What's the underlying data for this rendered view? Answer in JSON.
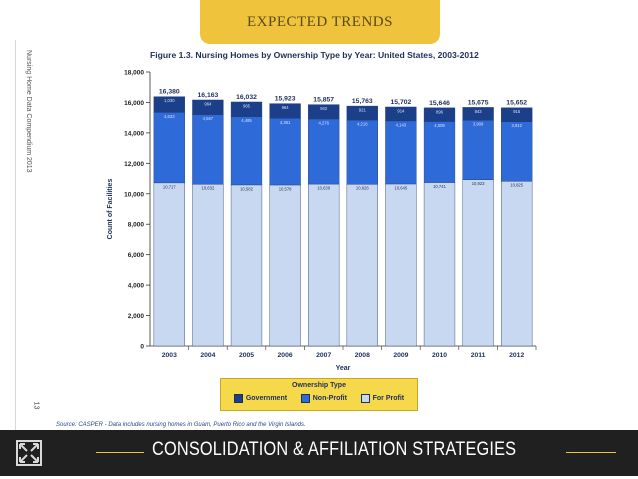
{
  "slide": {
    "banner_title": "EXPECTED TRENDS",
    "side_label": "Nursing Home Data Compendium 2013",
    "page_number": "13",
    "source_note": "Source: CASPER - Data includes nursing homes in Guam, Puerto Rico and the Virgin Islands.",
    "footer_title": "CONSOLIDATION & AFFILIATION STRATEGIES",
    "colors": {
      "accent": "#f0c33c",
      "government": "#1c3f8a",
      "nonprofit": "#2e6bd8",
      "forprofit": "#c8d8f0",
      "footer_bg": "#202020"
    }
  },
  "chart_data": {
    "type": "bar",
    "stacked": true,
    "title": "Figure 1.3. Nursing Homes by Ownership Type by Year: United States, 2003-2012",
    "xlabel": "Year",
    "ylabel": "Count of Facilities",
    "ylim": [
      0,
      18000
    ],
    "yticks": [
      "0",
      "2,000",
      "4,000",
      "6,000",
      "8,000",
      "10,000",
      "12,000",
      "14,000",
      "16,000",
      "18,000"
    ],
    "categories": [
      "2003",
      "2004",
      "2005",
      "2006",
      "2007",
      "2008",
      "2009",
      "2010",
      "2011",
      "2012"
    ],
    "totals": [
      "16,380",
      "16,163",
      "16,032",
      "15,923",
      "15,857",
      "15,763",
      "15,702",
      "15,646",
      "15,675",
      "15,652"
    ],
    "series": [
      {
        "name": "For Profit",
        "values": [
          10717,
          10632,
          10582,
          10578,
          10639,
          10626,
          10645,
          10741,
          10923,
          10825
        ],
        "labels": [
          "10,717",
          "10,632",
          "10,582",
          "10,578",
          "10,639",
          "10,626",
          "10,645",
          "10,741",
          "10,923",
          "10,825"
        ]
      },
      {
        "name": "Non-Profit",
        "values": [
          4633,
          4567,
          4485,
          4381,
          4276,
          4216,
          4143,
          4009,
          3909,
          3912
        ],
        "labels": [
          "4,633",
          "4,567",
          "4,485",
          "4,381",
          "4,276",
          "4,216",
          "4,143",
          "4,009",
          "3,909",
          "3,912"
        ]
      },
      {
        "name": "Government",
        "values": [
          1030,
          964,
          965,
          964,
          942,
          921,
          914,
          896,
          843,
          915
        ],
        "labels": [
          "1,030",
          "964",
          "965",
          "964",
          "942",
          "921",
          "914",
          "896",
          "843",
          "915"
        ]
      }
    ],
    "legend_title": "Ownership Type",
    "legend": [
      "Government",
      "Non-Profit",
      "For Profit"
    ]
  }
}
